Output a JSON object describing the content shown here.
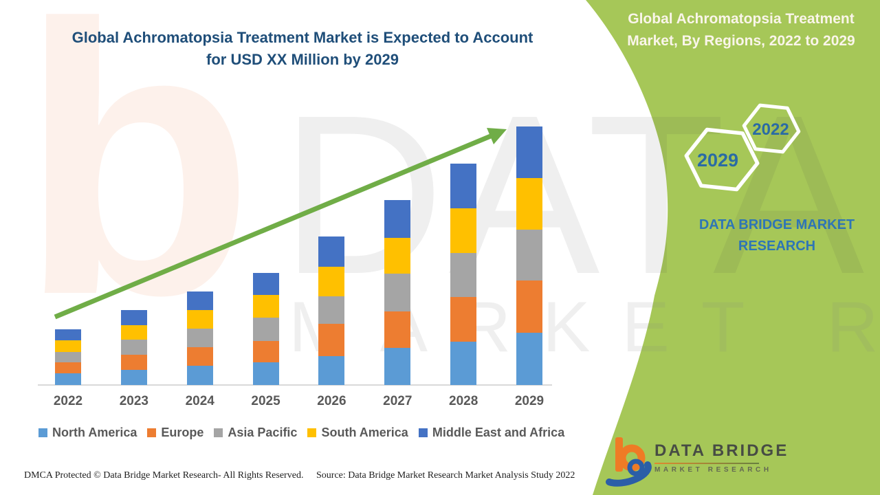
{
  "header": {
    "title_line1": "Global Achromatopsia Treatment Market is Expected to Account",
    "title_line2": "for USD XX Million by 2029",
    "title_color": "#1F4E79"
  },
  "side_panel": {
    "panel_color": "#A6C758",
    "title_line1": "Global Achromatopsia Treatment",
    "title_line2": "Market, By Regions, 2022 to 2029",
    "title_color": "#FAF5EA",
    "hexagons": [
      "2029",
      "2022"
    ],
    "hex_label_color": "#2A6BA4",
    "brand_line1": "DATA BRIDGE MARKET",
    "brand_line2": "RESEARCH",
    "brand_color": "#2E75B6"
  },
  "chart_data": {
    "type": "bar",
    "stacked": true,
    "categories": [
      "2022",
      "2023",
      "2024",
      "2025",
      "2026",
      "2027",
      "2028",
      "2029"
    ],
    "series": [
      {
        "name": "North America",
        "color": "#5B9BD5",
        "values": [
          17,
          22,
          28,
          33,
          42,
          54,
          63,
          76
        ]
      },
      {
        "name": "Europe",
        "color": "#ED7D31",
        "values": [
          16,
          22,
          27,
          31,
          47,
          53,
          65,
          76
        ]
      },
      {
        "name": "Asia Pacific",
        "color": "#A5A5A5",
        "values": [
          15,
          22,
          27,
          34,
          40,
          55,
          64,
          74
        ]
      },
      {
        "name": "South America",
        "color": "#FFC000",
        "values": [
          17,
          21,
          27,
          33,
          43,
          52,
          65,
          75
        ]
      },
      {
        "name": "Middle East and Africa",
        "color": "#4472C4",
        "values": [
          16,
          22,
          27,
          32,
          44,
          55,
          65,
          75
        ]
      }
    ],
    "value_axis": {
      "visible": false,
      "units_text": "USD XX Million"
    },
    "category_label_color": "#595959",
    "legend_position": "bottom",
    "grid": false,
    "trend_arrow": {
      "color": "#70AD47",
      "direction": "up",
      "from_category": "2022",
      "to_category": "2029"
    }
  },
  "logo": {
    "title": "DATA BRIDGE",
    "subtitle": "MARKET RESEARCH"
  },
  "footer": {
    "dmca": "DMCA Protected © Data Bridge Market Research- All Rights Reserved.",
    "source": "Source: Data Bridge Market Research Market Analysis Study 2022"
  },
  "watermarks": {
    "letter_b": "b",
    "big_text": "DATA BRIDGE",
    "outline_text": "MARKET RESEARCH"
  }
}
